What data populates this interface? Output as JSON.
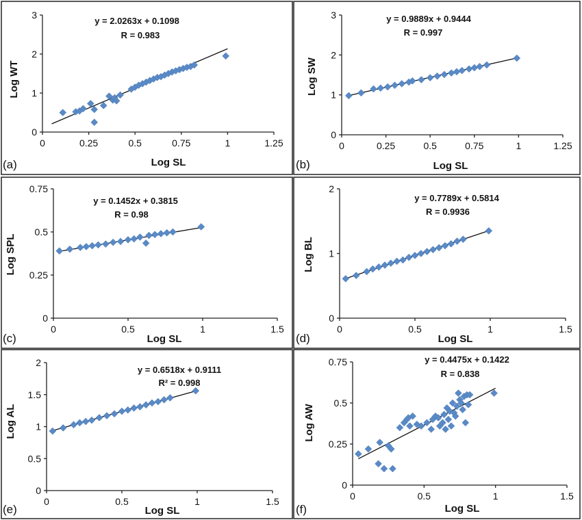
{
  "chart_data": [
    {
      "panel_label": "(a)",
      "type": "scatter",
      "xlabel": "Log SL",
      "ylabel": "Log WT",
      "xlim": [
        0,
        1.25
      ],
      "ylim": [
        0,
        3
      ],
      "xticks": [
        "0",
        "0.25",
        "0.5",
        "0.75",
        "1",
        "1.25"
      ],
      "yticks": [
        "0",
        "1",
        "2",
        "3"
      ],
      "equation": "y = 2.0263x + 0.1098",
      "r_label": "R = 0.983",
      "fit": {
        "slope": 2.0263,
        "intercept": 0.1098,
        "x_range": [
          0.05,
          1.0
        ]
      },
      "points": [
        [
          0.11,
          0.5
        ],
        [
          0.18,
          0.52
        ],
        [
          0.2,
          0.54
        ],
        [
          0.22,
          0.6
        ],
        [
          0.26,
          0.73
        ],
        [
          0.28,
          0.58
        ],
        [
          0.28,
          0.25
        ],
        [
          0.33,
          0.68
        ],
        [
          0.36,
          0.92
        ],
        [
          0.38,
          0.82
        ],
        [
          0.39,
          0.88
        ],
        [
          0.4,
          0.8
        ],
        [
          0.42,
          0.95
        ],
        [
          0.48,
          1.1
        ],
        [
          0.5,
          1.15
        ],
        [
          0.52,
          1.2
        ],
        [
          0.54,
          1.24
        ],
        [
          0.56,
          1.28
        ],
        [
          0.58,
          1.32
        ],
        [
          0.6,
          1.36
        ],
        [
          0.62,
          1.4
        ],
        [
          0.64,
          1.42
        ],
        [
          0.66,
          1.46
        ],
        [
          0.68,
          1.5
        ],
        [
          0.7,
          1.54
        ],
        [
          0.72,
          1.57
        ],
        [
          0.74,
          1.6
        ],
        [
          0.76,
          1.63
        ],
        [
          0.78,
          1.66
        ],
        [
          0.8,
          1.68
        ],
        [
          0.82,
          1.72
        ],
        [
          0.99,
          1.95
        ]
      ]
    },
    {
      "panel_label": "(b)",
      "type": "scatter",
      "xlabel": "Log SL",
      "ylabel": "Log SW",
      "xlim": [
        0,
        1.25
      ],
      "ylim": [
        0,
        3
      ],
      "xticks": [
        "0",
        "0.25",
        "0.5",
        "0.75",
        "1",
        "1.25"
      ],
      "yticks": [
        "0",
        "1",
        "2",
        "3"
      ],
      "equation": "y = 0.9889x + 0.9444",
      "r_label": "R = 0.997",
      "fit": {
        "slope": 0.9889,
        "intercept": 0.9444,
        "x_range": [
          0.04,
          1.0
        ]
      },
      "points": [
        [
          0.04,
          0.98
        ],
        [
          0.11,
          1.05
        ],
        [
          0.18,
          1.15
        ],
        [
          0.22,
          1.17
        ],
        [
          0.26,
          1.2
        ],
        [
          0.3,
          1.24
        ],
        [
          0.34,
          1.28
        ],
        [
          0.38,
          1.32
        ],
        [
          0.4,
          1.35
        ],
        [
          0.45,
          1.38
        ],
        [
          0.5,
          1.43
        ],
        [
          0.54,
          1.47
        ],
        [
          0.58,
          1.51
        ],
        [
          0.62,
          1.55
        ],
        [
          0.65,
          1.58
        ],
        [
          0.68,
          1.61
        ],
        [
          0.72,
          1.65
        ],
        [
          0.75,
          1.68
        ],
        [
          0.78,
          1.71
        ],
        [
          0.82,
          1.75
        ],
        [
          0.99,
          1.92
        ]
      ]
    },
    {
      "panel_label": "(c)",
      "type": "scatter",
      "xlabel": "Log SL",
      "ylabel": "Log SPL",
      "xlim": [
        0,
        1.5
      ],
      "ylim": [
        0,
        0.75
      ],
      "xticks": [
        "0",
        "0.5",
        "1",
        "1.5"
      ],
      "yticks": [
        "0",
        "0.25",
        "0.5",
        "0.75"
      ],
      "equation": "y = 0.1452x + 0.3815",
      "r_label": "R = 0.98",
      "fit": {
        "slope": 0.1452,
        "intercept": 0.3815,
        "x_range": [
          0.04,
          1.0
        ]
      },
      "points": [
        [
          0.04,
          0.39
        ],
        [
          0.11,
          0.4
        ],
        [
          0.18,
          0.41
        ],
        [
          0.22,
          0.415
        ],
        [
          0.26,
          0.42
        ],
        [
          0.3,
          0.425
        ],
        [
          0.35,
          0.43
        ],
        [
          0.4,
          0.44
        ],
        [
          0.45,
          0.445
        ],
        [
          0.5,
          0.455
        ],
        [
          0.54,
          0.46
        ],
        [
          0.58,
          0.47
        ],
        [
          0.62,
          0.435
        ],
        [
          0.64,
          0.48
        ],
        [
          0.68,
          0.485
        ],
        [
          0.72,
          0.49
        ],
        [
          0.76,
          0.495
        ],
        [
          0.8,
          0.5
        ],
        [
          0.99,
          0.53
        ]
      ]
    },
    {
      "panel_label": "(d)",
      "type": "scatter",
      "xlabel": "Log SL",
      "ylabel": "Log BL",
      "xlim": [
        0,
        1.5
      ],
      "ylim": [
        0,
        2
      ],
      "xticks": [
        "0",
        "0.5",
        "1",
        "1.5"
      ],
      "yticks": [
        "0",
        "1",
        "2"
      ],
      "equation": "y = 0.7789x + 0.5814",
      "r_label": "R = 0.9936",
      "fit": {
        "slope": 0.7789,
        "intercept": 0.5814,
        "x_range": [
          0.04,
          1.0
        ]
      },
      "points": [
        [
          0.04,
          0.61
        ],
        [
          0.11,
          0.66
        ],
        [
          0.18,
          0.72
        ],
        [
          0.22,
          0.76
        ],
        [
          0.26,
          0.79
        ],
        [
          0.3,
          0.82
        ],
        [
          0.34,
          0.85
        ],
        [
          0.38,
          0.88
        ],
        [
          0.42,
          0.9
        ],
        [
          0.46,
          0.94
        ],
        [
          0.5,
          0.97
        ],
        [
          0.54,
          1.0
        ],
        [
          0.58,
          1.03
        ],
        [
          0.62,
          1.06
        ],
        [
          0.66,
          1.09
        ],
        [
          0.7,
          1.12
        ],
        [
          0.74,
          1.15
        ],
        [
          0.78,
          1.19
        ],
        [
          0.82,
          1.22
        ],
        [
          0.99,
          1.35
        ]
      ]
    },
    {
      "panel_label": "(e)",
      "type": "scatter",
      "xlabel": "Log SL",
      "ylabel": "Log AL",
      "xlim": [
        0,
        1.5
      ],
      "ylim": [
        0,
        2
      ],
      "xticks": [
        "0",
        "0.5",
        "1",
        "1.5"
      ],
      "yticks": [
        "0",
        "0.5",
        "1",
        "1.5",
        "2"
      ],
      "equation": "y = 0.6518x + 0.9111",
      "r_label": "R² = 0.998",
      "fit": {
        "slope": 0.6518,
        "intercept": 0.9111,
        "x_range": [
          0.04,
          1.0
        ]
      },
      "points": [
        [
          0.04,
          0.93
        ],
        [
          0.11,
          0.98
        ],
        [
          0.18,
          1.03
        ],
        [
          0.22,
          1.06
        ],
        [
          0.26,
          1.08
        ],
        [
          0.3,
          1.1
        ],
        [
          0.35,
          1.14
        ],
        [
          0.4,
          1.17
        ],
        [
          0.45,
          1.2
        ],
        [
          0.5,
          1.24
        ],
        [
          0.54,
          1.26
        ],
        [
          0.58,
          1.29
        ],
        [
          0.62,
          1.31
        ],
        [
          0.66,
          1.34
        ],
        [
          0.7,
          1.37
        ],
        [
          0.74,
          1.39
        ],
        [
          0.78,
          1.42
        ],
        [
          0.82,
          1.45
        ],
        [
          0.99,
          1.56
        ]
      ]
    },
    {
      "panel_label": "(f)",
      "type": "scatter",
      "xlabel": "Log SL",
      "ylabel": "Log AW",
      "xlim": [
        0,
        1.5
      ],
      "ylim": [
        0,
        0.75
      ],
      "xticks": [
        "0",
        "0.5",
        "1",
        "1.5"
      ],
      "yticks": [
        "0",
        "0.25",
        "0.5",
        "0.75"
      ],
      "equation": "y = 0.4475x + 0.1422",
      "r_label": "R = 0.838",
      "fit": {
        "slope": 0.4475,
        "intercept": 0.1422,
        "x_range": [
          0.04,
          1.0
        ]
      },
      "points": [
        [
          0.04,
          0.19
        ],
        [
          0.11,
          0.22
        ],
        [
          0.18,
          0.13
        ],
        [
          0.19,
          0.26
        ],
        [
          0.22,
          0.1
        ],
        [
          0.25,
          0.24
        ],
        [
          0.27,
          0.22
        ],
        [
          0.28,
          0.1
        ],
        [
          0.33,
          0.35
        ],
        [
          0.36,
          0.38
        ],
        [
          0.38,
          0.4
        ],
        [
          0.39,
          0.41
        ],
        [
          0.4,
          0.36
        ],
        [
          0.42,
          0.42
        ],
        [
          0.45,
          0.37
        ],
        [
          0.48,
          0.36
        ],
        [
          0.52,
          0.38
        ],
        [
          0.55,
          0.34
        ],
        [
          0.56,
          0.4
        ],
        [
          0.58,
          0.42
        ],
        [
          0.6,
          0.41
        ],
        [
          0.61,
          0.36
        ],
        [
          0.63,
          0.38
        ],
        [
          0.64,
          0.43
        ],
        [
          0.65,
          0.34
        ],
        [
          0.66,
          0.47
        ],
        [
          0.67,
          0.4
        ],
        [
          0.68,
          0.45
        ],
        [
          0.69,
          0.36
        ],
        [
          0.7,
          0.5
        ],
        [
          0.71,
          0.44
        ],
        [
          0.72,
          0.42
        ],
        [
          0.73,
          0.48
        ],
        [
          0.74,
          0.56
        ],
        [
          0.75,
          0.52
        ],
        [
          0.76,
          0.5
        ],
        [
          0.77,
          0.46
        ],
        [
          0.78,
          0.54
        ],
        [
          0.79,
          0.38
        ],
        [
          0.8,
          0.55
        ],
        [
          0.81,
          0.49
        ],
        [
          0.82,
          0.55
        ],
        [
          0.99,
          0.56
        ]
      ]
    }
  ]
}
